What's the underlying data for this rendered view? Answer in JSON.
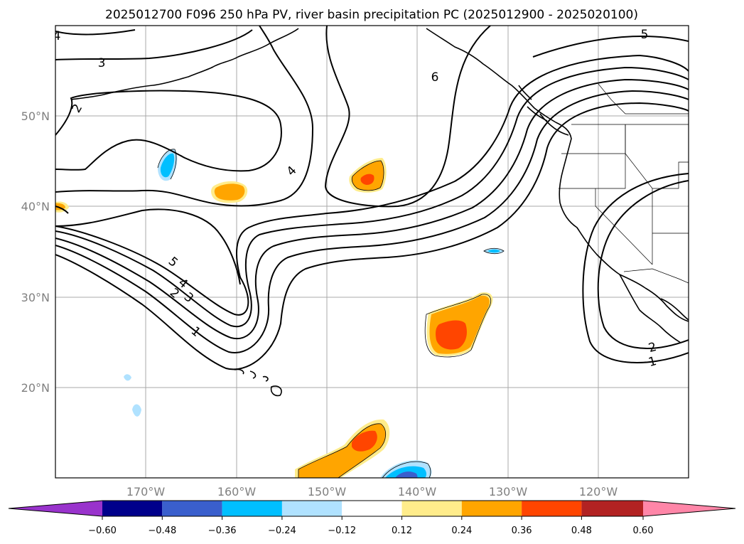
{
  "title": "2025012700 F096 250 hPa PV, river basin precipitation PC (2025012900 - 2025020100)",
  "map": {
    "lat_labels": [
      "50°N",
      "40°N",
      "30°N",
      "20°N"
    ],
    "lon_labels": [
      "170°W",
      "160°W",
      "150°W",
      "140°W",
      "130°W",
      "120°W"
    ],
    "gridline_color": "#a9a9a9",
    "contour_labels": [
      "4",
      "3",
      "2",
      "4",
      "6",
      "5",
      "5",
      "4",
      "3",
      "2",
      "1",
      "2",
      "1"
    ]
  },
  "colorbar": {
    "colors": [
      "#9933cc",
      "#00008b",
      "#3a5fcd",
      "#00bfff",
      "#b0e2ff",
      "#ffffff",
      "#ffec8b",
      "#ffa500",
      "#ff4500",
      "#b22222",
      "#ff86a8"
    ],
    "extend_low_color": "#9933cc",
    "extend_high_color": "#ff86a8",
    "tick_labels": [
      "−0.60",
      "−0.48",
      "−0.36",
      "−0.24",
      "−0.12",
      "0.12",
      "0.24",
      "0.36",
      "0.48",
      "0.60"
    ]
  }
}
